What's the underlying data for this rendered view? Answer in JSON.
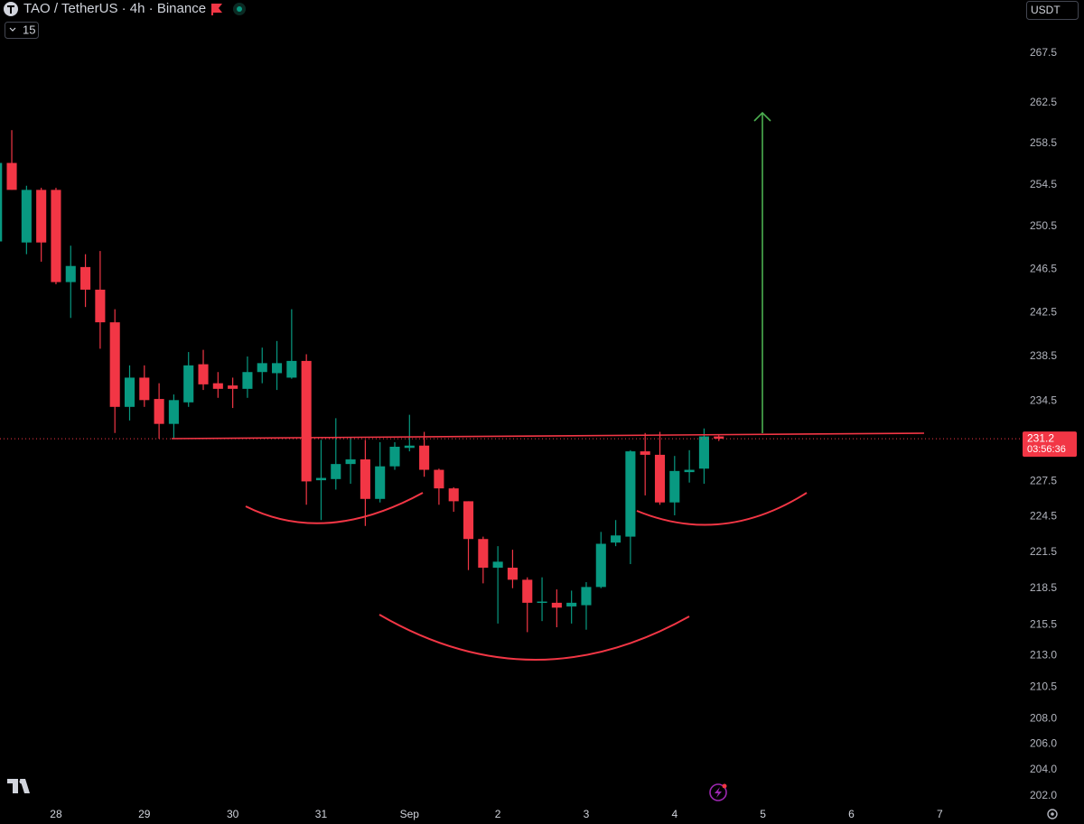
{
  "chart_data": {
    "type": "candlestick",
    "title": "TAO / TetherUS · 4h · Binance",
    "indicator_count": 15,
    "currency": "USDT",
    "log_scale": true,
    "grid": false,
    "up_color": "#089981",
    "down_color": "#f23645",
    "x": [
      0,
      1,
      2,
      3,
      4,
      5,
      6,
      7,
      8,
      9,
      10,
      11,
      12,
      13,
      14,
      15,
      16,
      17,
      18,
      19,
      20,
      21,
      22,
      23,
      24,
      25,
      26,
      27,
      28,
      29,
      30,
      31,
      32,
      33,
      34,
      35,
      36,
      37,
      38,
      39,
      40,
      41,
      42,
      43,
      44,
      45,
      46,
      47,
      48,
      49
    ],
    "open": [
      249.1,
      256.6,
      249.0,
      254.0,
      254.0,
      245.3,
      246.7,
      244.6,
      241.6,
      234.0,
      236.6,
      234.7,
      232.5,
      234.4,
      237.8,
      236.1,
      235.9,
      235.6,
      237.1,
      237.0,
      236.6,
      238.1,
      227.6,
      227.7,
      229.0,
      229.4,
      226.0,
      228.8,
      230.4,
      230.6,
      228.5,
      226.9,
      225.8,
      222.6,
      220.2,
      220.2,
      219.2,
      217.3,
      217.3,
      217.0,
      217.1,
      218.6,
      222.3,
      222.8,
      230.1,
      229.8,
      225.7,
      228.3,
      228.6,
      231.4
    ],
    "high": [
      256.8,
      259.8,
      254.4,
      254.2,
      254.2,
      248.7,
      247.9,
      248.2,
      242.8,
      237.7,
      237.7,
      236.1,
      235.1,
      238.9,
      239.1,
      237.1,
      236.6,
      238.5,
      239.3,
      239.9,
      242.8,
      238.7,
      231.1,
      233.0,
      231.3,
      231.1,
      230.9,
      230.9,
      233.3,
      231.8,
      228.6,
      227.0,
      225.8,
      222.8,
      222.0,
      221.7,
      219.4,
      219.4,
      218.4,
      218.3,
      219.0,
      223.2,
      224.2,
      230.2,
      231.7,
      231.8,
      229.7,
      230.2,
      232.1,
      231.5
    ],
    "low": [
      249.0,
      254.0,
      247.9,
      247.2,
      245.1,
      242.0,
      243.0,
      239.2,
      231.7,
      232.8,
      234.0,
      231.2,
      231.2,
      234.0,
      235.5,
      234.8,
      233.9,
      234.8,
      236.1,
      235.5,
      236.5,
      225.5,
      224.2,
      226.8,
      227.3,
      223.7,
      225.7,
      228.5,
      230.1,
      227.9,
      225.5,
      224.9,
      220.0,
      218.9,
      215.6,
      218.5,
      214.9,
      215.8,
      215.3,
      215.6,
      215.1,
      218.5,
      222.0,
      220.5,
      226.3,
      225.5,
      224.6,
      227.4,
      227.3,
      231.0
    ],
    "close": [
      256.6,
      254.0,
      254.0,
      249.0,
      245.3,
      246.8,
      244.6,
      241.6,
      234.0,
      236.6,
      234.6,
      232.5,
      234.6,
      237.7,
      236.0,
      235.6,
      235.6,
      237.1,
      237.9,
      237.9,
      238.1,
      227.5,
      227.8,
      229.0,
      229.4,
      226.0,
      228.8,
      230.5,
      230.6,
      228.5,
      226.9,
      225.8,
      222.6,
      220.2,
      220.7,
      219.2,
      217.3,
      217.4,
      216.9,
      217.3,
      218.6,
      222.2,
      222.9,
      230.1,
      229.8,
      225.7,
      228.4,
      228.5,
      231.4,
      231.2
    ],
    "xlim": [
      0.2,
      69.5
    ],
    "xticks": [
      {
        "value": 4,
        "label": "28"
      },
      {
        "value": 10,
        "label": "29"
      },
      {
        "value": 16,
        "label": "30"
      },
      {
        "value": 22,
        "label": "31"
      },
      {
        "value": 28,
        "label": "Sep"
      },
      {
        "value": 34,
        "label": "2"
      },
      {
        "value": 40,
        "label": "3"
      },
      {
        "value": 46,
        "label": "4"
      },
      {
        "value": 52,
        "label": "5"
      },
      {
        "value": 58,
        "label": "6"
      },
      {
        "value": 64,
        "label": "7"
      }
    ],
    "ylim": [
      201.1,
      272.9
    ],
    "yticks": [
      267.5,
      262.5,
      258.5,
      254.5,
      250.5,
      246.5,
      242.5,
      238.5,
      234.5,
      227.5,
      224.5,
      221.5,
      218.5,
      215.5,
      {
        "value": 213,
        "label": "213.0"
      },
      210.5,
      {
        "value": 208,
        "label": "208.0"
      },
      {
        "value": 206,
        "label": "206.0"
      },
      {
        "value": 204,
        "label": "204.0"
      },
      {
        "value": 202,
        "label": "202.0"
      }
    ],
    "last_price": 231.2,
    "countdown": "03:56:36"
  }
}
